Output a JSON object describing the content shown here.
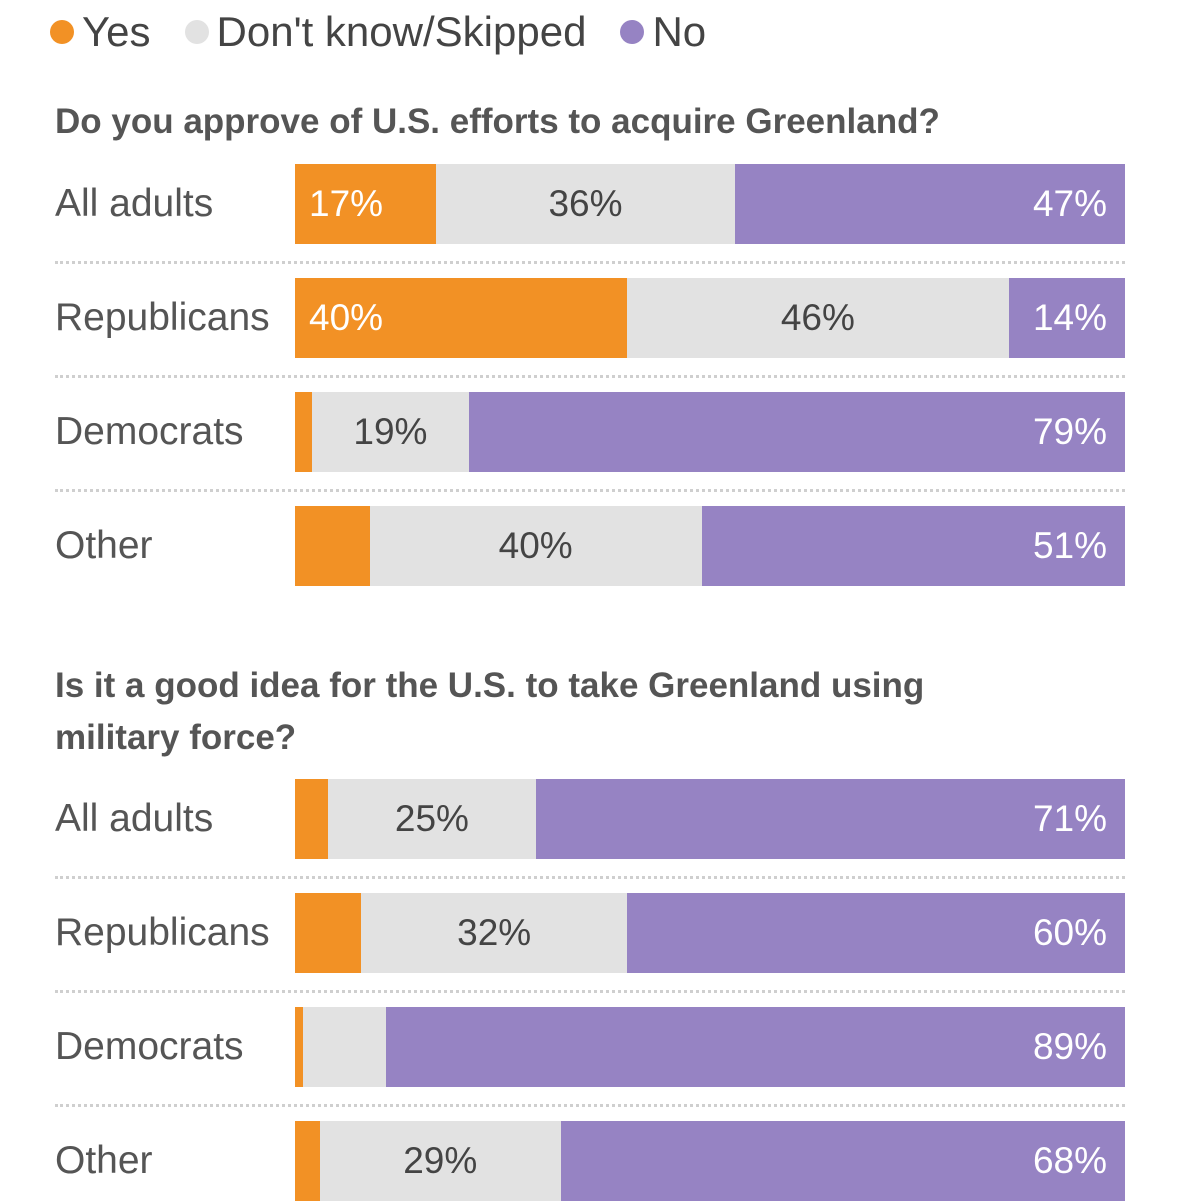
{
  "legend": [
    {
      "label": "Yes",
      "color": "#f29125"
    },
    {
      "label": "Don't know/Skipped",
      "color": "#e2e2e2"
    },
    {
      "label": "No",
      "color": "#9683c3"
    }
  ],
  "chart_data": [
    {
      "type": "bar",
      "orientation": "horizontal-stacked-100",
      "title": "Do you approve of U.S. efforts to acquire Greenland?",
      "categories": [
        "All adults",
        "Republicans",
        "Democrats",
        "Other"
      ],
      "series": [
        {
          "name": "Yes",
          "color": "#f29125",
          "values": [
            17,
            40,
            2,
            9
          ],
          "labels": [
            "17%",
            "40%",
            "",
            ""
          ]
        },
        {
          "name": "Don't know/Skipped",
          "color": "#e2e2e2",
          "values": [
            36,
            46,
            19,
            40
          ],
          "labels": [
            "36%",
            "46%",
            "19%",
            "40%"
          ]
        },
        {
          "name": "No",
          "color": "#9683c3",
          "values": [
            47,
            14,
            79,
            51
          ],
          "labels": [
            "47%",
            "14%",
            "79%",
            "51%"
          ]
        }
      ]
    },
    {
      "type": "bar",
      "orientation": "horizontal-stacked-100",
      "title": "Is it a good idea for the U.S. to take Greenland using military force?",
      "categories": [
        "All adults",
        "Republicans",
        "Democrats",
        "Other"
      ],
      "series": [
        {
          "name": "Yes",
          "color": "#f29125",
          "values": [
            4,
            8,
            1,
            3
          ],
          "labels": [
            "",
            "",
            "",
            ""
          ]
        },
        {
          "name": "Don't know/Skipped",
          "color": "#e2e2e2",
          "values": [
            25,
            32,
            10,
            29
          ],
          "labels": [
            "25%",
            "32%",
            "",
            "29%"
          ]
        },
        {
          "name": "No",
          "color": "#9683c3",
          "values": [
            71,
            60,
            89,
            68
          ],
          "labels": [
            "71%",
            "60%",
            "89%",
            "68%"
          ]
        }
      ]
    }
  ]
}
